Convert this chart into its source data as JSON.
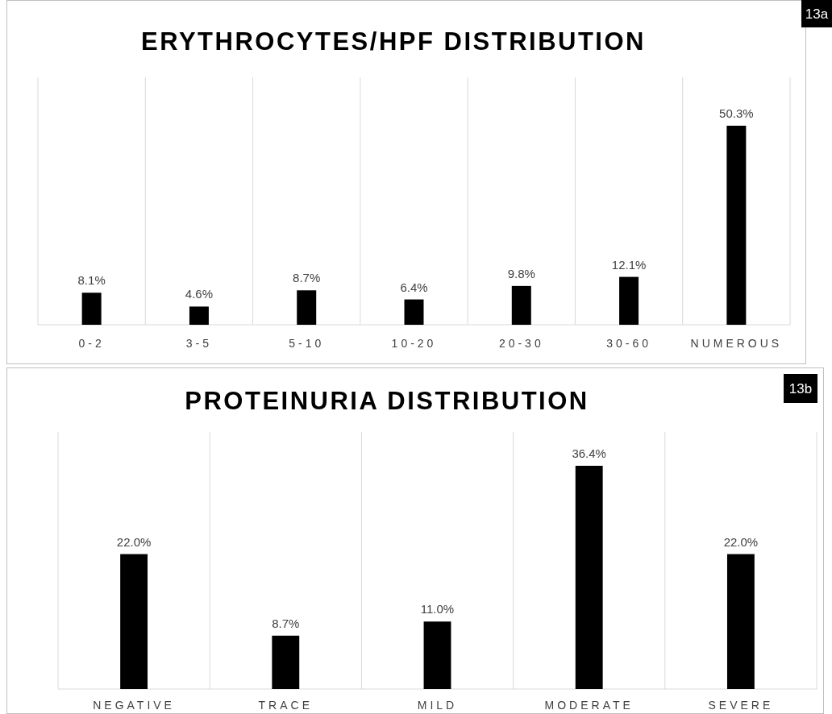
{
  "chart_data": [
    {
      "type": "bar",
      "title": "ERYTHROCYTES/HPF DISTRIBUTION",
      "categories": [
        "0-2",
        "3-5",
        "5-10",
        "10-20",
        "20-30",
        "30-60",
        "NUMEROUS"
      ],
      "values": [
        8.1,
        4.6,
        8.7,
        6.4,
        9.8,
        12.1,
        50.3
      ],
      "value_labels": [
        "8.1%",
        "4.6%",
        "8.7%",
        "6.4%",
        "9.8%",
        "12.1%",
        "50.3%"
      ],
      "color": "#000000",
      "annotations": [
        "13a"
      ]
    },
    {
      "type": "bar",
      "title": "PROTEINURIA DISTRIBUTION",
      "categories": [
        "NEGATIVE",
        "TRACE",
        "MILD",
        "MODERATE",
        "SEVERE"
      ],
      "values": [
        22.0,
        8.7,
        11.0,
        36.4,
        22.0
      ],
      "value_labels": [
        "22.0%",
        "8.7%",
        "11.0%",
        "36.4%",
        "22.0%"
      ],
      "color": "#000000",
      "annotations": [
        "13b"
      ]
    }
  ]
}
